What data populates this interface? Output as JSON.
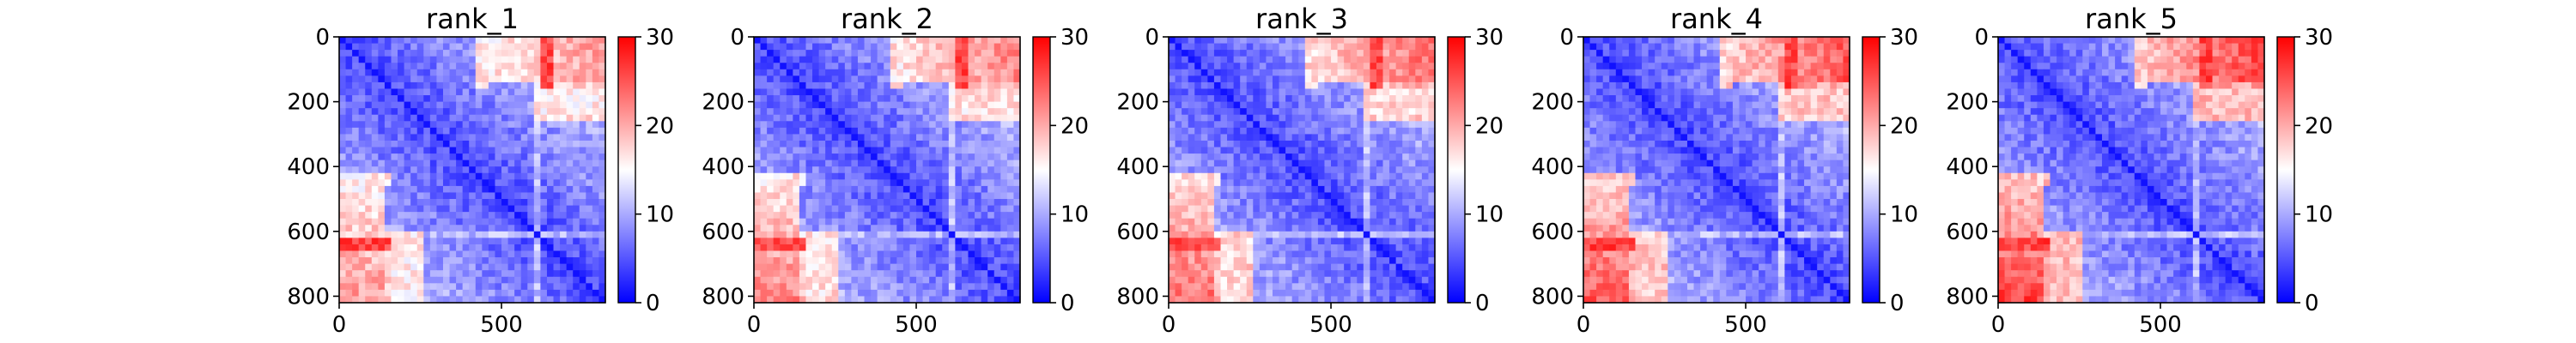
{
  "chart_data": [
    {
      "type": "heatmap",
      "title": "rank_1",
      "x_ticks": [
        "0",
        "500"
      ],
      "y_ticks": [
        "0",
        "200",
        "400",
        "600",
        "800"
      ],
      "x_tick_values": [
        0,
        500
      ],
      "y_tick_values": [
        0,
        200,
        400,
        600,
        800
      ],
      "xlim": [
        0,
        820
      ],
      "ylim": [
        820,
        0
      ],
      "colorbar": {
        "range": [
          0,
          30
        ],
        "ticks": [
          "0",
          "10",
          "20",
          "30"
        ],
        "tick_values": [
          0,
          10,
          20,
          30
        ],
        "colormap": "bwr",
        "colors": [
          "#0000ff",
          "#ffffff",
          "#ff0000"
        ]
      }
    },
    {
      "type": "heatmap",
      "title": "rank_2",
      "x_ticks": [
        "0",
        "500"
      ],
      "y_ticks": [
        "0",
        "200",
        "400",
        "600",
        "800"
      ],
      "x_tick_values": [
        0,
        500
      ],
      "y_tick_values": [
        0,
        200,
        400,
        600,
        800
      ],
      "xlim": [
        0,
        820
      ],
      "ylim": [
        820,
        0
      ],
      "colorbar": {
        "range": [
          0,
          30
        ],
        "ticks": [
          "0",
          "10",
          "20",
          "30"
        ],
        "tick_values": [
          0,
          10,
          20,
          30
        ],
        "colormap": "bwr",
        "colors": [
          "#0000ff",
          "#ffffff",
          "#ff0000"
        ]
      }
    },
    {
      "type": "heatmap",
      "title": "rank_3",
      "x_ticks": [
        "0",
        "500"
      ],
      "y_ticks": [
        "0",
        "200",
        "400",
        "600",
        "800"
      ],
      "x_tick_values": [
        0,
        500
      ],
      "y_tick_values": [
        0,
        200,
        400,
        600,
        800
      ],
      "xlim": [
        0,
        820
      ],
      "ylim": [
        820,
        0
      ],
      "colorbar": {
        "range": [
          0,
          30
        ],
        "ticks": [
          "0",
          "10",
          "20",
          "30"
        ],
        "tick_values": [
          0,
          10,
          20,
          30
        ],
        "colormap": "bwr",
        "colors": [
          "#0000ff",
          "#ffffff",
          "#ff0000"
        ]
      }
    },
    {
      "type": "heatmap",
      "title": "rank_4",
      "x_ticks": [
        "0",
        "500"
      ],
      "y_ticks": [
        "0",
        "200",
        "400",
        "600",
        "800"
      ],
      "x_tick_values": [
        0,
        500
      ],
      "y_tick_values": [
        0,
        200,
        400,
        600,
        800
      ],
      "xlim": [
        0,
        820
      ],
      "ylim": [
        820,
        0
      ],
      "colorbar": {
        "range": [
          0,
          30
        ],
        "ticks": [
          "0",
          "10",
          "20",
          "30"
        ],
        "tick_values": [
          0,
          10,
          20,
          30
        ],
        "colormap": "bwr",
        "colors": [
          "#0000ff",
          "#ffffff",
          "#ff0000"
        ]
      }
    },
    {
      "type": "heatmap",
      "title": "rank_5",
      "x_ticks": [
        "0",
        "500"
      ],
      "y_ticks": [
        "0",
        "200",
        "400",
        "600",
        "800"
      ],
      "x_tick_values": [
        0,
        500
      ],
      "y_tick_values": [
        0,
        200,
        400,
        600,
        800
      ],
      "xlim": [
        0,
        820
      ],
      "ylim": [
        820,
        0
      ],
      "colorbar": {
        "range": [
          0,
          30
        ],
        "ticks": [
          "0",
          "10",
          "20",
          "30"
        ],
        "tick_values": [
          0,
          10,
          20,
          30
        ],
        "colormap": "bwr",
        "colors": [
          "#0000ff",
          "#ffffff",
          "#ff0000"
        ]
      }
    }
  ]
}
